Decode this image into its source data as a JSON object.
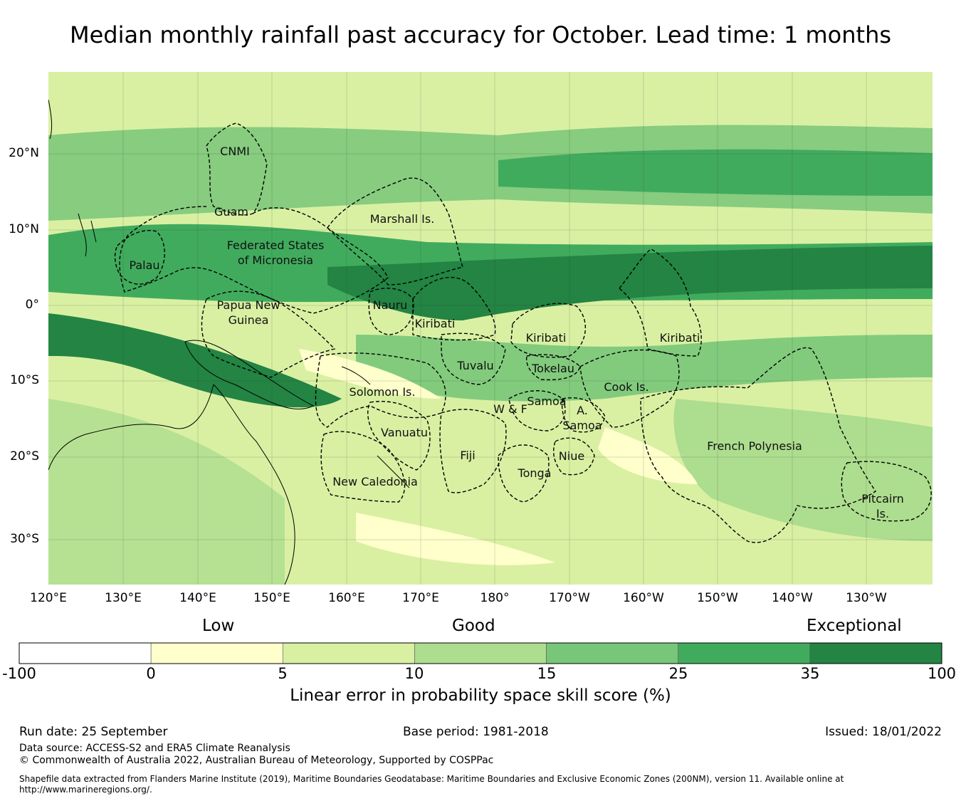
{
  "title": "Median monthly rainfall past accuracy for October. Lead time: 1 months",
  "map": {
    "lon_ticks": [
      "120°E",
      "130°E",
      "140°E",
      "150°E",
      "160°E",
      "170°E",
      "180°",
      "170°W",
      "160°W",
      "150°W",
      "140°W",
      "130°W"
    ],
    "lat_ticks": [
      "20°N",
      "10°N",
      "0°",
      "10°S",
      "20°S",
      "30°S"
    ],
    "regions": [
      "CNMI",
      "Guam",
      "Marshall Is.",
      "Federated States",
      "of Micronesia",
      "Palau",
      "Papua New",
      "Guinea",
      "Nauru",
      "Kiribati",
      "Kiribati",
      "Kiribati",
      "Tuvalu",
      "Tokelau",
      "Cook Is.",
      "Solomon Is.",
      "W & F",
      "Samoa",
      "A.",
      "Samoa",
      "Vanuatu",
      "Fiji",
      "Niue",
      "Tonga",
      "French Polynesia",
      "New Caledonia",
      "Pitcairn",
      "Is."
    ]
  },
  "legend": {
    "categories": [
      "Low",
      "Good",
      "Exceptional"
    ],
    "bins": [
      {
        "from": -100,
        "to": 0,
        "color": "#ffffff"
      },
      {
        "from": 0,
        "to": 5,
        "color": "#ffffcc"
      },
      {
        "from": 5,
        "to": 10,
        "color": "#d9f0a3"
      },
      {
        "from": 10,
        "to": 15,
        "color": "#addd8e"
      },
      {
        "from": 15,
        "to": 25,
        "color": "#78c679"
      },
      {
        "from": 25,
        "to": 35,
        "color": "#41ab5d"
      },
      {
        "from": 35,
        "to": 100,
        "color": "#238443"
      }
    ],
    "tick_labels": [
      "-100",
      "0",
      "5",
      "10",
      "15",
      "25",
      "35",
      "100"
    ],
    "axis_label": "Linear error in probability space skill score (%)"
  },
  "footer": {
    "run_date": "Run date: 25 September",
    "base_period": "Base period: 1981-2018",
    "issued": "Issued: 18/01/2022",
    "data_source": "Data source: ACCESS-S2 and ERA5 Climate Reanalysis",
    "copyright": "© Commonwealth of Australia 2022, Australian Bureau of Meteorology, Supported by COSPPac",
    "shapefile_line1": "Shapefile data extracted from Flanders Marine Institute (2019), Maritime Boundaries Geodatabase: Maritime Boundaries and Exclusive Economic Zones (200NM), version 11. Available online at",
    "shapefile_line2": "http://www.marineregions.org/."
  }
}
